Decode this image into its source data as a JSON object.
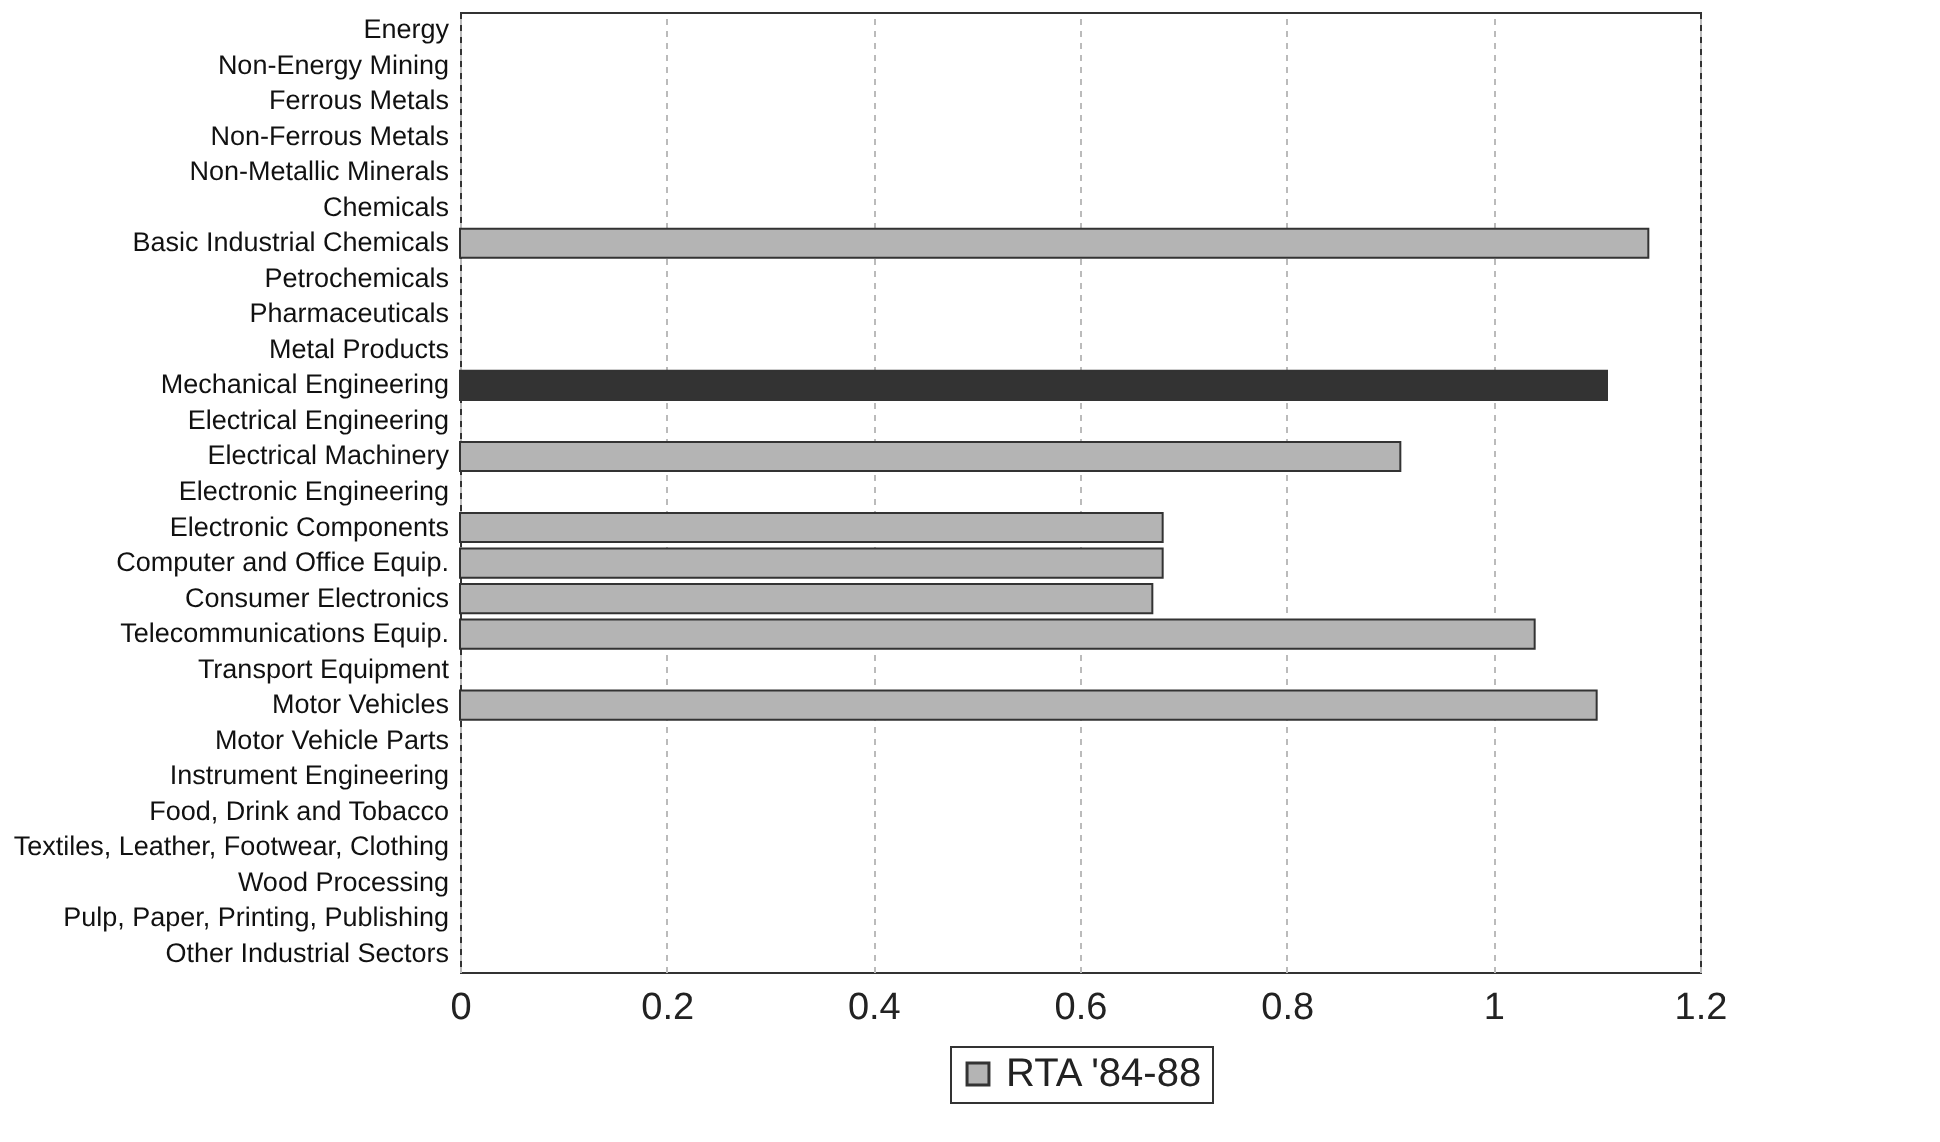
{
  "chart_data": {
    "type": "bar",
    "orientation": "horizontal",
    "categories": [
      "Energy",
      "Non-Energy Mining",
      "Ferrous Metals",
      "Non-Ferrous Metals",
      "Non-Metallic Minerals",
      "Chemicals",
      "Basic Industrial Chemicals",
      "Petrochemicals",
      "Pharmaceuticals",
      "Metal Products",
      "Mechanical Engineering",
      "Electrical Engineering",
      "Electrical Machinery",
      "Electronic Engineering",
      "Electronic Components",
      "Computer and Office Equip.",
      "Consumer Electronics",
      "Telecommunications Equip.",
      "Transport Equipment",
      "Motor Vehicles",
      "Motor Vehicle Parts",
      "Instrument Engineering",
      "Food, Drink and Tobacco",
      "Textiles, Leather, Footwear, Clothing",
      "Wood Processing",
      "Pulp, Paper, Printing, Publishing",
      "Other Industrial Sectors"
    ],
    "series": [
      {
        "name": "RTA '84-88",
        "color": "#b4b4b4",
        "values": [
          null,
          null,
          null,
          null,
          null,
          null,
          1.15,
          null,
          null,
          null,
          1.11,
          null,
          0.91,
          null,
          0.68,
          0.68,
          0.67,
          1.04,
          null,
          1.1,
          null,
          null,
          null,
          null,
          null,
          null,
          null
        ],
        "colors": [
          null,
          null,
          null,
          null,
          null,
          null,
          "#b4b4b4",
          null,
          null,
          null,
          "#333333",
          null,
          "#b4b4b4",
          null,
          "#b4b4b4",
          "#b4b4b4",
          "#b4b4b4",
          "#b4b4b4",
          null,
          "#b4b4b4",
          null,
          null,
          null,
          null,
          null,
          null,
          null
        ]
      }
    ],
    "xlim": [
      0,
      1.2
    ],
    "xticks": [
      0,
      0.2,
      0.4,
      0.6,
      0.8,
      1,
      1.2
    ],
    "grid": "x",
    "legend": "bottom"
  }
}
